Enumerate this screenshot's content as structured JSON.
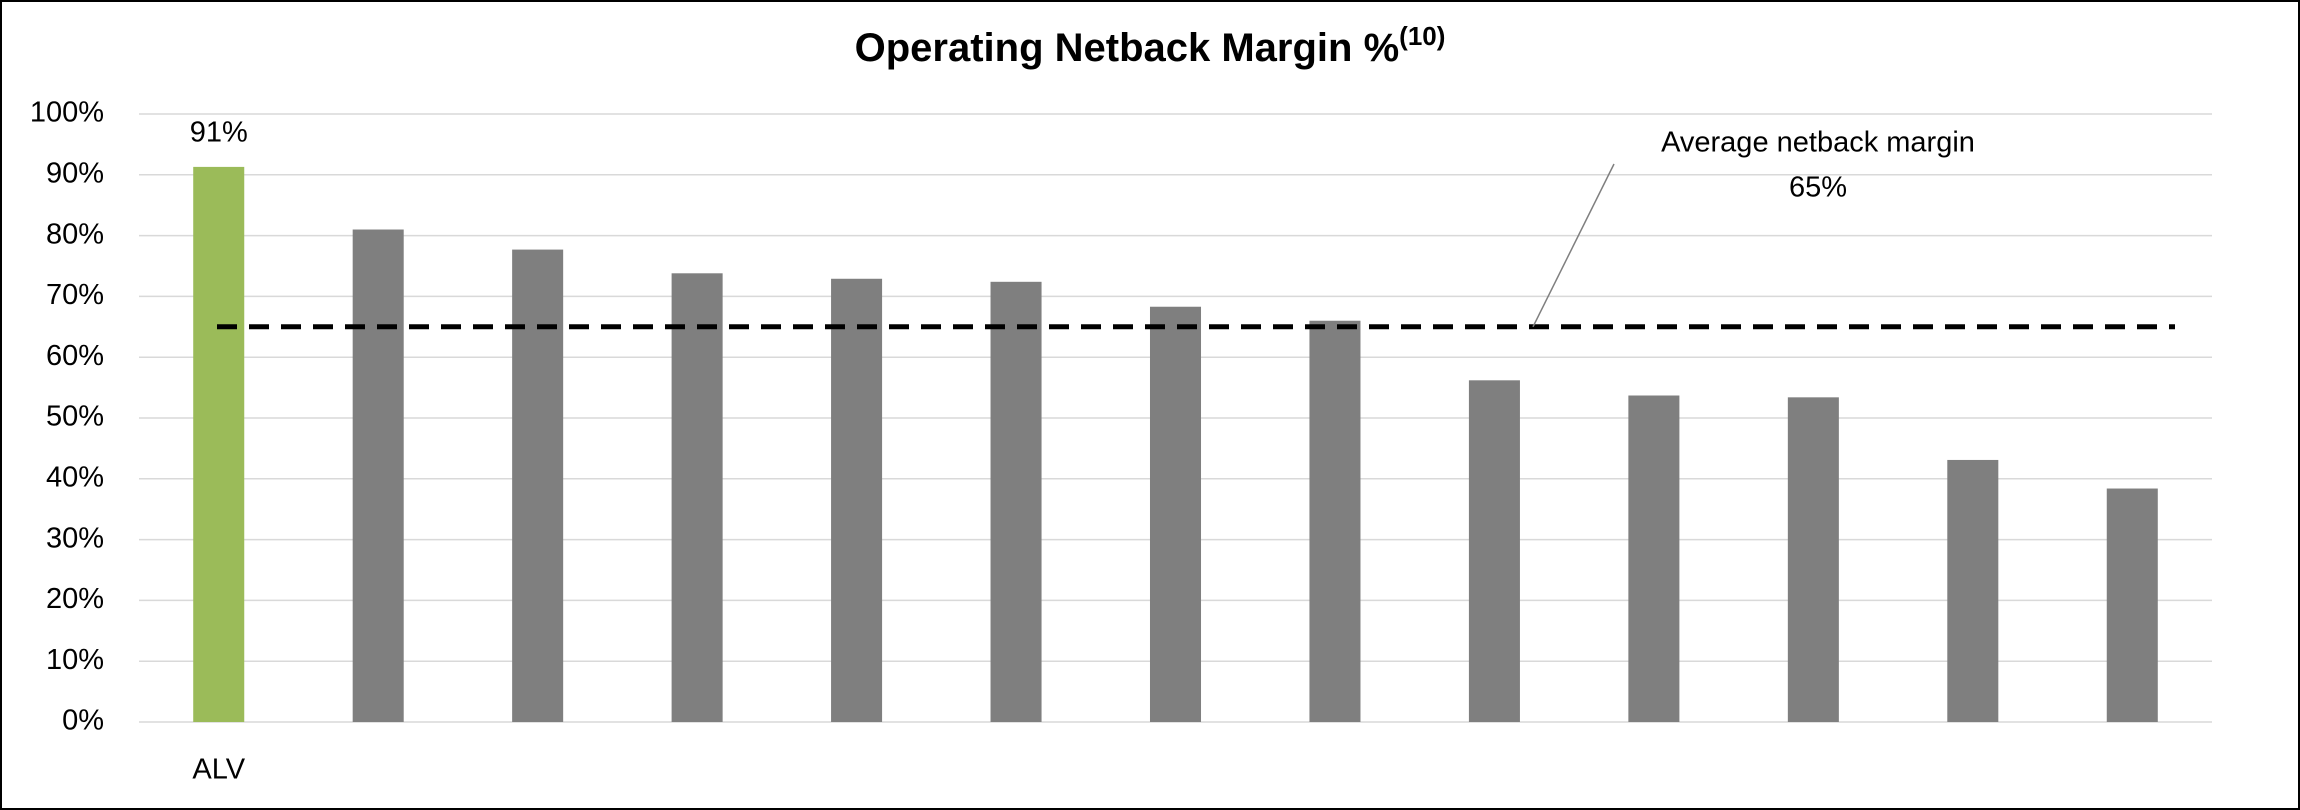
{
  "chart_data": {
    "type": "bar",
    "title": "Operating Netback Margin %",
    "title_superscript": "(10)",
    "categories": [
      "ALV",
      null,
      null,
      null,
      null,
      null,
      null,
      null,
      null,
      null,
      null,
      null,
      null
    ],
    "values": [
      91.3,
      81,
      77.7,
      73.8,
      72.9,
      72.4,
      68.3,
      66,
      56.2,
      53.7,
      53.4,
      43.1,
      38.4
    ],
    "value_labels": [
      "91%",
      null,
      null,
      null,
      null,
      null,
      null,
      null,
      null,
      null,
      null,
      null,
      null
    ],
    "colors": [
      "#9bbb59",
      "#7f7f7f",
      "#7f7f7f",
      "#7f7f7f",
      "#7f7f7f",
      "#7f7f7f",
      "#7f7f7f",
      "#7f7f7f",
      "#7f7f7f",
      "#7f7f7f",
      "#7f7f7f",
      "#7f7f7f",
      "#7f7f7f"
    ],
    "reference_line": {
      "value": 65,
      "label": "Average netback margin",
      "value_label": "65%",
      "color": "#000000"
    },
    "ylim": [
      0,
      100
    ],
    "yticks": [
      {
        "value": 0,
        "label": "0%"
      },
      {
        "value": 10,
        "label": "10%"
      },
      {
        "value": 20,
        "label": "20%"
      },
      {
        "value": 30,
        "label": "30%"
      },
      {
        "value": 40,
        "label": "40%"
      },
      {
        "value": 50,
        "label": "50%"
      },
      {
        "value": 60,
        "label": "60%"
      },
      {
        "value": 70,
        "label": "70%"
      },
      {
        "value": 80,
        "label": "80%"
      },
      {
        "value": 90,
        "label": "90%"
      },
      {
        "value": 100,
        "label": "100%"
      }
    ],
    "grid": true
  }
}
